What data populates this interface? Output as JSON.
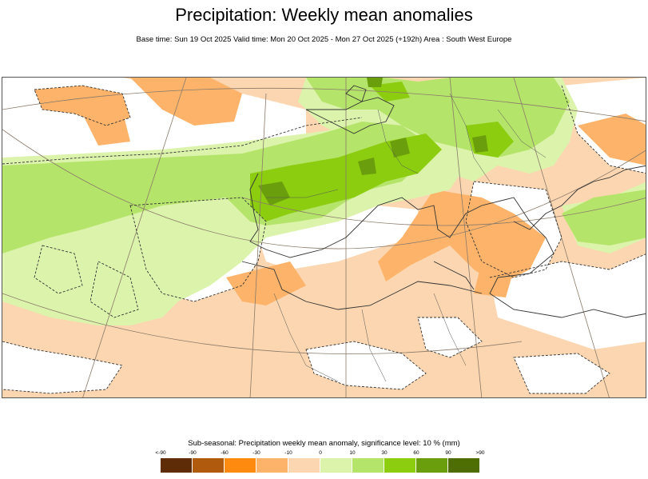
{
  "header": {
    "title": "Precipitation: Weekly mean anomalies",
    "subtitle": "Base time: Sun 19 Oct 2025 Valid time: Mon 20 Oct 2025 - Mon 27 Oct 2025 (+192h) Area : South West Europe"
  },
  "legend": {
    "title": "Sub-seasonal: Precipitation weekly mean anomaly, significance level: 10 % (mm)",
    "ticks": [
      "<-90",
      "-90",
      "-60",
      "-30",
      "-10",
      "0",
      "10",
      "30",
      "60",
      "90",
      ">90"
    ],
    "colors": [
      "#5e2c06",
      "#b05a0e",
      "#ff8a10",
      "#fdb46a",
      "#fcd6b0",
      "#dcf3ac",
      "#b5e46a",
      "#8ccd10",
      "#6b9e0c",
      "#4e6e04"
    ]
  },
  "map": {
    "region": "South West Europe",
    "colors": {
      "light_orange": "#fcd6b0",
      "orange": "#fdb46a",
      "light_green": "#dcf3ac",
      "green": "#b5e46a",
      "mid_green": "#8ccd10",
      "dark_green": "#6b9e0c",
      "coast": "#333333",
      "grid": "#8a7a6a"
    }
  }
}
